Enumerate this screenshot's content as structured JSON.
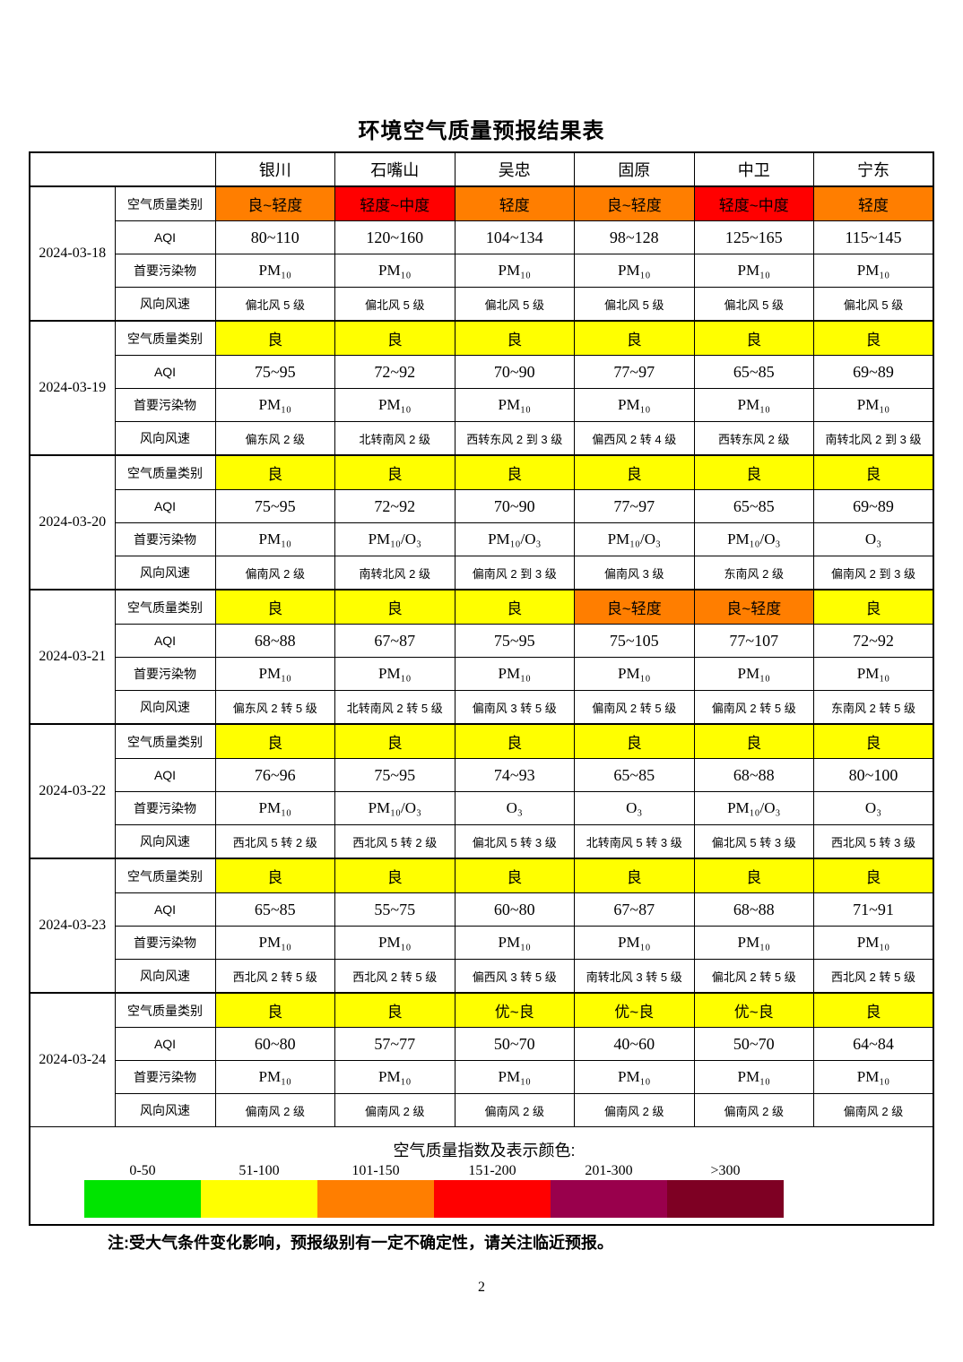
{
  "page": {
    "title": "环境空气质量预报结果表",
    "note": "注:受大气条件变化影响，预报级别有一定不确定性，请关注临近预报。",
    "page_number": "2"
  },
  "category_colors": {
    "yellow": "#FFFF00",
    "orange": "#FF7E00",
    "red": "#FF0000"
  },
  "table": {
    "cities": [
      "银川",
      "石嘴山",
      "吴忠",
      "固原",
      "中卫",
      "宁东"
    ],
    "row_labels": [
      "空气质量类别",
      "AQI",
      "首要污染物",
      "风向风速"
    ],
    "days": [
      {
        "date": "2024-03-18",
        "category": [
          {
            "text": "良~轻度",
            "color": "orange"
          },
          {
            "text": "轻度~中度",
            "color": "red"
          },
          {
            "text": "轻度",
            "color": "orange"
          },
          {
            "text": "良~轻度",
            "color": "orange"
          },
          {
            "text": "轻度~中度",
            "color": "red"
          },
          {
            "text": "轻度",
            "color": "orange"
          }
        ],
        "aqi": [
          "80~110",
          "120~160",
          "104~134",
          "98~128",
          "125~165",
          "115~145"
        ],
        "pollutant": [
          "PM₁₀",
          "PM₁₀",
          "PM₁₀",
          "PM₁₀",
          "PM₁₀",
          "PM₁₀"
        ],
        "wind": [
          "偏北风 5 级",
          "偏北风 5 级",
          "偏北风 5 级",
          "偏北风 5 级",
          "偏北风 5 级",
          "偏北风 5 级"
        ]
      },
      {
        "date": "2024-03-19",
        "category": [
          {
            "text": "良",
            "color": "yellow"
          },
          {
            "text": "良",
            "color": "yellow"
          },
          {
            "text": "良",
            "color": "yellow"
          },
          {
            "text": "良",
            "color": "yellow"
          },
          {
            "text": "良",
            "color": "yellow"
          },
          {
            "text": "良",
            "color": "yellow"
          }
        ],
        "aqi": [
          "75~95",
          "72~92",
          "70~90",
          "77~97",
          "65~85",
          "69~89"
        ],
        "pollutant": [
          "PM₁₀",
          "PM₁₀",
          "PM₁₀",
          "PM₁₀",
          "PM₁₀",
          "PM₁₀"
        ],
        "wind": [
          "偏东风 2 级",
          "北转南风 2 级",
          "西转东风 2 到 3 级",
          "偏西风 2 转 4 级",
          "西转东风 2 级",
          "南转北风 2 到 3 级"
        ]
      },
      {
        "date": "2024-03-20",
        "category": [
          {
            "text": "良",
            "color": "yellow"
          },
          {
            "text": "良",
            "color": "yellow"
          },
          {
            "text": "良",
            "color": "yellow"
          },
          {
            "text": "良",
            "color": "yellow"
          },
          {
            "text": "良",
            "color": "yellow"
          },
          {
            "text": "良",
            "color": "yellow"
          }
        ],
        "aqi": [
          "75~95",
          "72~92",
          "70~90",
          "77~97",
          "65~85",
          "69~89"
        ],
        "pollutant": [
          "PM₁₀",
          "PM₁₀/O₃",
          "PM₁₀/O₃",
          "PM₁₀/O₃",
          "PM₁₀/O₃",
          "O₃"
        ],
        "wind": [
          "偏南风 2 级",
          "南转北风 2 级",
          "偏南风 2 到 3 级",
          "偏南风 3 级",
          "东南风 2 级",
          "偏南风 2 到 3 级"
        ]
      },
      {
        "date": "2024-03-21",
        "category": [
          {
            "text": "良",
            "color": "yellow"
          },
          {
            "text": "良",
            "color": "yellow"
          },
          {
            "text": "良",
            "color": "yellow"
          },
          {
            "text": "良~轻度",
            "color": "orange"
          },
          {
            "text": "良~轻度",
            "color": "orange"
          },
          {
            "text": "良",
            "color": "yellow"
          }
        ],
        "aqi": [
          "68~88",
          "67~87",
          "75~95",
          "75~105",
          "77~107",
          "72~92"
        ],
        "pollutant": [
          "PM₁₀",
          "PM₁₀",
          "PM₁₀",
          "PM₁₀",
          "PM₁₀",
          "PM₁₀"
        ],
        "wind": [
          "偏东风 2 转 5 级",
          "北转南风 2 转 5 级",
          "偏南风 3 转 5 级",
          "偏南风 2 转 5 级",
          "偏南风 2 转 5 级",
          "东南风 2 转 5 级"
        ]
      },
      {
        "date": "2024-03-22",
        "category": [
          {
            "text": "良",
            "color": "yellow"
          },
          {
            "text": "良",
            "color": "yellow"
          },
          {
            "text": "良",
            "color": "yellow"
          },
          {
            "text": "良",
            "color": "yellow"
          },
          {
            "text": "良",
            "color": "yellow"
          },
          {
            "text": "良",
            "color": "yellow"
          }
        ],
        "aqi": [
          "76~96",
          "75~95",
          "74~93",
          "65~85",
          "68~88",
          "80~100"
        ],
        "pollutant": [
          "PM₁₀",
          "PM₁₀/O₃",
          "O₃",
          "O₃",
          "PM₁₀/O₃",
          "O₃"
        ],
        "wind": [
          "西北风 5 转 2 级",
          "西北风 5 转 2 级",
          "偏北风 5 转 3 级",
          "北转南风 5 转 3 级",
          "偏北风 5 转 3 级",
          "西北风 5 转 3 级"
        ]
      },
      {
        "date": "2024-03-23",
        "category": [
          {
            "text": "良",
            "color": "yellow"
          },
          {
            "text": "良",
            "color": "yellow"
          },
          {
            "text": "良",
            "color": "yellow"
          },
          {
            "text": "良",
            "color": "yellow"
          },
          {
            "text": "良",
            "color": "yellow"
          },
          {
            "text": "良",
            "color": "yellow"
          }
        ],
        "aqi": [
          "65~85",
          "55~75",
          "60~80",
          "67~87",
          "68~88",
          "71~91"
        ],
        "pollutant": [
          "PM₁₀",
          "PM₁₀",
          "PM₁₀",
          "PM₁₀",
          "PM₁₀",
          "PM₁₀"
        ],
        "wind": [
          "西北风 2 转 5 级",
          "西北风 2 转 5 级",
          "偏西风 3 转 5 级",
          "南转北风 3 转 5 级",
          "偏北风 2 转 5 级",
          "西北风 2 转 5 级"
        ]
      },
      {
        "date": "2024-03-24",
        "category": [
          {
            "text": "良",
            "color": "yellow"
          },
          {
            "text": "良",
            "color": "yellow"
          },
          {
            "text": "优~良",
            "color": "yellow"
          },
          {
            "text": "优~良",
            "color": "yellow"
          },
          {
            "text": "优~良",
            "color": "yellow"
          },
          {
            "text": "良",
            "color": "yellow"
          }
        ],
        "aqi": [
          "60~80",
          "57~77",
          "50~70",
          "40~60",
          "50~70",
          "64~84"
        ],
        "pollutant": [
          "PM₁₀",
          "PM₁₀",
          "PM₁₀",
          "PM₁₀",
          "PM₁₀",
          "PM₁₀"
        ],
        "wind": [
          "偏南风 2 级",
          "偏南风 2 级",
          "偏南风 2 级",
          "偏南风 2 级",
          "偏南风 2 级",
          "偏南风 2 级"
        ]
      }
    ]
  },
  "legend": {
    "title": "空气质量指数及表示颜色:",
    "ranges": [
      "0-50",
      "51-100",
      "101-150",
      "151-200",
      "201-300",
      ">300"
    ],
    "colors": [
      "#00E400",
      "#FFFF00",
      "#FF7E00",
      "#FF0000",
      "#99004C",
      "#7E0023"
    ]
  }
}
